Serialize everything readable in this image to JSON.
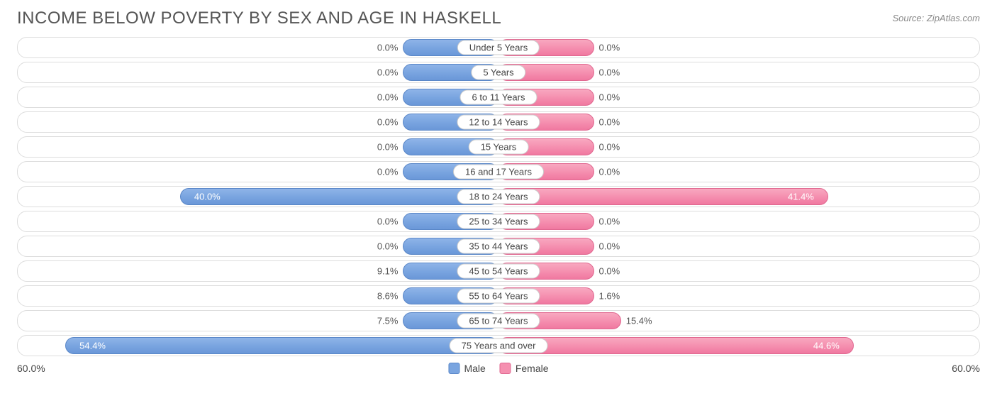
{
  "header": {
    "title": "INCOME BELOW POVERTY BY SEX AND AGE IN HASKELL",
    "source": "Source: ZipAtlas.com"
  },
  "chart": {
    "type": "diverging-bar",
    "axis_max": 60.0,
    "axis_max_label_left": "60.0%",
    "axis_max_label_right": "60.0%",
    "min_bar_pct": 10.0,
    "label_inside_threshold": 25.0,
    "colors": {
      "male_bar": "#7aa5e0",
      "male_border": "#5a87c8",
      "female_bar": "#f590b0",
      "female_border": "#e06890",
      "track_border": "#dddddd",
      "text": "#555555",
      "background": "#ffffff"
    },
    "rows": [
      {
        "age": "Under 5 Years",
        "male": 0.0,
        "male_label": "0.0%",
        "female": 0.0,
        "female_label": "0.0%"
      },
      {
        "age": "5 Years",
        "male": 0.0,
        "male_label": "0.0%",
        "female": 0.0,
        "female_label": "0.0%"
      },
      {
        "age": "6 to 11 Years",
        "male": 0.0,
        "male_label": "0.0%",
        "female": 0.0,
        "female_label": "0.0%"
      },
      {
        "age": "12 to 14 Years",
        "male": 0.0,
        "male_label": "0.0%",
        "female": 0.0,
        "female_label": "0.0%"
      },
      {
        "age": "15 Years",
        "male": 0.0,
        "male_label": "0.0%",
        "female": 0.0,
        "female_label": "0.0%"
      },
      {
        "age": "16 and 17 Years",
        "male": 0.0,
        "male_label": "0.0%",
        "female": 0.0,
        "female_label": "0.0%"
      },
      {
        "age": "18 to 24 Years",
        "male": 40.0,
        "male_label": "40.0%",
        "female": 41.4,
        "female_label": "41.4%"
      },
      {
        "age": "25 to 34 Years",
        "male": 0.0,
        "male_label": "0.0%",
        "female": 0.0,
        "female_label": "0.0%"
      },
      {
        "age": "35 to 44 Years",
        "male": 0.0,
        "male_label": "0.0%",
        "female": 0.0,
        "female_label": "0.0%"
      },
      {
        "age": "45 to 54 Years",
        "male": 9.1,
        "male_label": "9.1%",
        "female": 0.0,
        "female_label": "0.0%"
      },
      {
        "age": "55 to 64 Years",
        "male": 8.6,
        "male_label": "8.6%",
        "female": 1.6,
        "female_label": "1.6%"
      },
      {
        "age": "65 to 74 Years",
        "male": 7.5,
        "male_label": "7.5%",
        "female": 15.4,
        "female_label": "15.4%"
      },
      {
        "age": "75 Years and over",
        "male": 54.4,
        "male_label": "54.4%",
        "female": 44.6,
        "female_label": "44.6%"
      }
    ]
  },
  "legend": {
    "male": "Male",
    "female": "Female"
  }
}
